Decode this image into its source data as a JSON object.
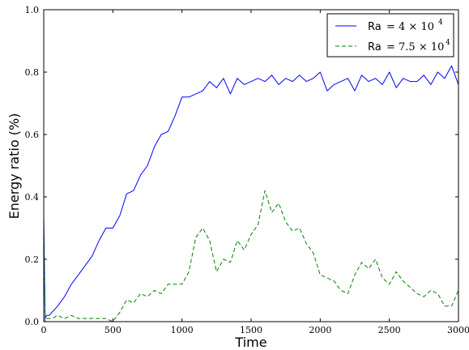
{
  "chart_data": {
    "type": "line",
    "xlabel": "Time",
    "ylabel": "Energy ratio (%)",
    "xlim": [
      0,
      3000
    ],
    "ylim": [
      0,
      1.0
    ],
    "x_ticks": [
      "0",
      "500",
      "1000",
      "1500",
      "2000",
      "2500",
      "3000"
    ],
    "y_ticks": [
      "0.0",
      "0.2",
      "0.4",
      "0.6",
      "0.8",
      "1.0"
    ],
    "grid": false,
    "legend_position": "top-right",
    "series": [
      {
        "name": "Ra = 4 × 10^4",
        "legend_prefix": "Ra",
        "legend_math": "= 4 × 10",
        "legend_exp": "4",
        "color": "#0000ff",
        "style": "solid",
        "x": [
          0,
          10,
          20,
          40,
          60,
          100,
          150,
          200,
          250,
          300,
          350,
          400,
          450,
          500,
          550,
          600,
          650,
          700,
          750,
          800,
          850,
          900,
          950,
          1000,
          1050,
          1100,
          1150,
          1200,
          1250,
          1300,
          1350,
          1400,
          1450,
          1500,
          1550,
          1600,
          1650,
          1700,
          1750,
          1800,
          1850,
          1900,
          1950,
          2000,
          2050,
          2100,
          2150,
          2200,
          2250,
          2300,
          2350,
          2400,
          2450,
          2500,
          2550,
          2600,
          2650,
          2700,
          2750,
          2800,
          2850,
          2900,
          2950,
          3000
        ],
        "y": [
          0.34,
          0.01,
          0.02,
          0.02,
          0.03,
          0.05,
          0.08,
          0.12,
          0.15,
          0.18,
          0.21,
          0.26,
          0.3,
          0.3,
          0.34,
          0.41,
          0.42,
          0.47,
          0.5,
          0.56,
          0.6,
          0.61,
          0.66,
          0.72,
          0.72,
          0.73,
          0.74,
          0.77,
          0.75,
          0.78,
          0.73,
          0.78,
          0.76,
          0.77,
          0.78,
          0.77,
          0.79,
          0.76,
          0.78,
          0.77,
          0.79,
          0.77,
          0.78,
          0.8,
          0.74,
          0.76,
          0.77,
          0.78,
          0.74,
          0.79,
          0.77,
          0.78,
          0.76,
          0.8,
          0.75,
          0.78,
          0.77,
          0.77,
          0.79,
          0.76,
          0.8,
          0.78,
          0.82,
          0.76
        ]
      },
      {
        "name": "Ra = 7.5 × 10^4",
        "legend_prefix": "Ra",
        "legend_math": "= 7.5 × 10",
        "legend_exp": "4",
        "color": "#008000",
        "style": "dashed",
        "x": [
          0,
          10,
          20,
          40,
          60,
          100,
          150,
          200,
          250,
          300,
          350,
          400,
          450,
          500,
          550,
          600,
          650,
          700,
          750,
          800,
          850,
          900,
          950,
          1000,
          1050,
          1100,
          1150,
          1200,
          1250,
          1300,
          1350,
          1400,
          1450,
          1500,
          1550,
          1600,
          1650,
          1700,
          1750,
          1800,
          1850,
          1900,
          1950,
          2000,
          2050,
          2100,
          2150,
          2200,
          2250,
          2300,
          2350,
          2400,
          2450,
          2500,
          2550,
          2600,
          2650,
          2700,
          2750,
          2800,
          2850,
          2900,
          2950,
          3000
        ],
        "y": [
          0.3,
          0.0,
          0.01,
          0.01,
          0.01,
          0.02,
          0.01,
          0.02,
          0.01,
          0.01,
          0.01,
          0.01,
          0.01,
          0.0,
          0.03,
          0.07,
          0.06,
          0.09,
          0.08,
          0.1,
          0.09,
          0.12,
          0.12,
          0.12,
          0.16,
          0.27,
          0.3,
          0.26,
          0.16,
          0.2,
          0.19,
          0.26,
          0.23,
          0.28,
          0.31,
          0.42,
          0.35,
          0.38,
          0.32,
          0.29,
          0.3,
          0.25,
          0.22,
          0.15,
          0.14,
          0.13,
          0.1,
          0.09,
          0.15,
          0.19,
          0.17,
          0.2,
          0.14,
          0.12,
          0.16,
          0.13,
          0.11,
          0.09,
          0.08,
          0.1,
          0.09,
          0.05,
          0.05,
          0.1
        ]
      }
    ]
  }
}
